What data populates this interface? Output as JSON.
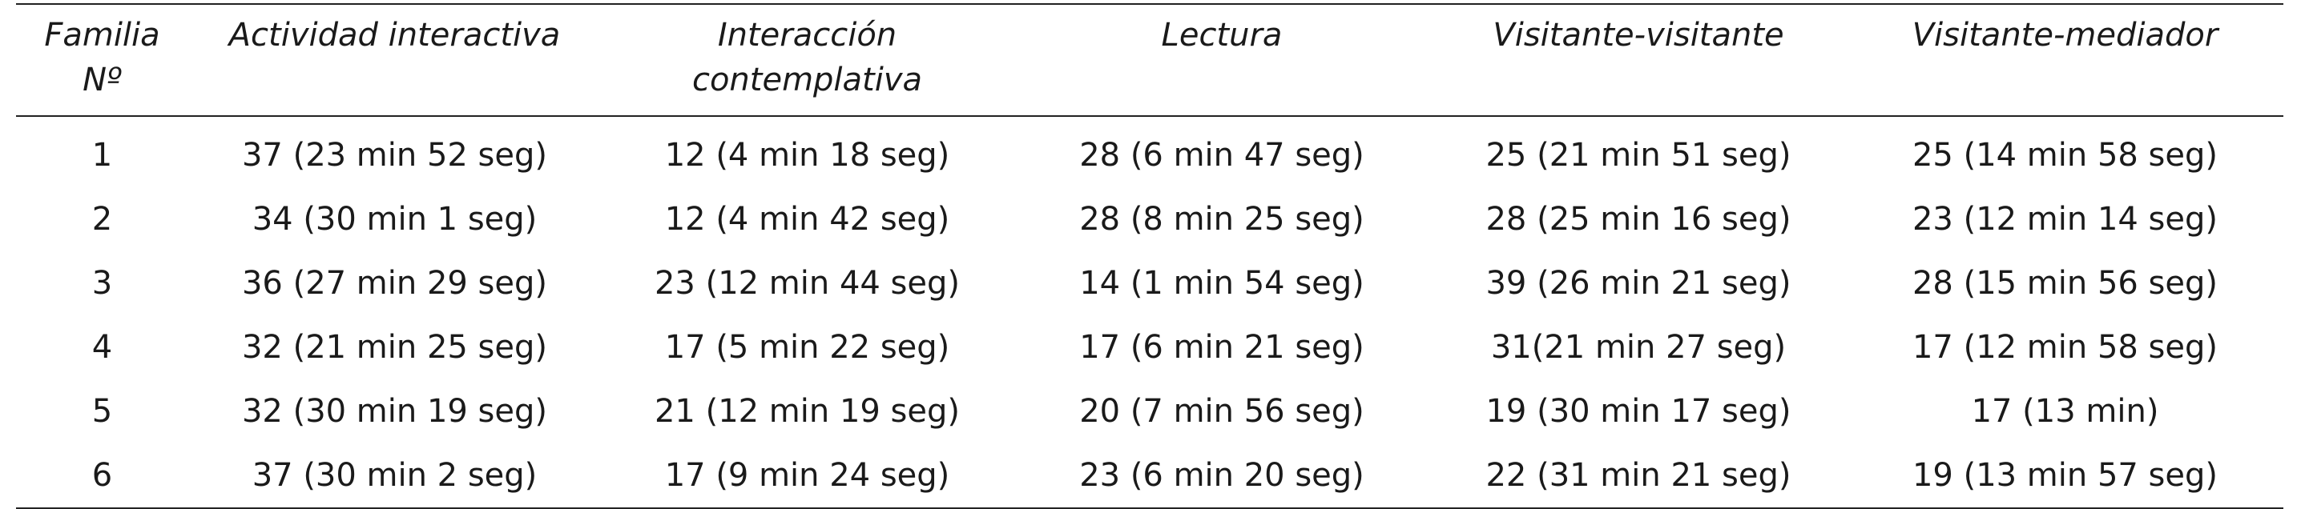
{
  "table": {
    "headers": [
      "Familia Nº",
      "Actividad interactiva",
      "Interacción contemplativa",
      "Lectura",
      "Visitante-visitante",
      "Visitante-mediador"
    ],
    "rows": [
      [
        "1",
        "37 (23 min 52 seg)",
        "12 (4 min 18 seg)",
        "28 (6 min 47 seg)",
        "25 (21 min 51 seg)",
        "25 (14 min 58 seg)"
      ],
      [
        "2",
        "34 (30 min 1 seg)",
        "12 (4 min 42 seg)",
        "28 (8 min 25 seg)",
        "28 (25 min 16 seg)",
        "23 (12 min 14 seg)"
      ],
      [
        "3",
        "36 (27 min 29 seg)",
        "23 (12 min 44 seg)",
        "14 (1 min 54 seg)",
        "39 (26 min 21 seg)",
        "28 (15 min 56 seg)"
      ],
      [
        "4",
        "32 (21 min 25 seg)",
        "17 (5 min 22 seg)",
        "17 (6 min 21 seg)",
        "31(21 min 27 seg)",
        "17 (12 min 58 seg)"
      ],
      [
        "5",
        "32 (30 min 19 seg)",
        "21 (12 min 19 seg)",
        "20 (7 min 56 seg)",
        "19 (30 min 17 seg)",
        "17 (13 min)"
      ],
      [
        "6",
        "37 (30 min 2 seg)",
        "17 (9 min 24 seg)",
        "23 (6 min 20 seg)",
        "22 (31 min 21 seg)",
        "19 (13 min 57 seg)"
      ]
    ]
  }
}
